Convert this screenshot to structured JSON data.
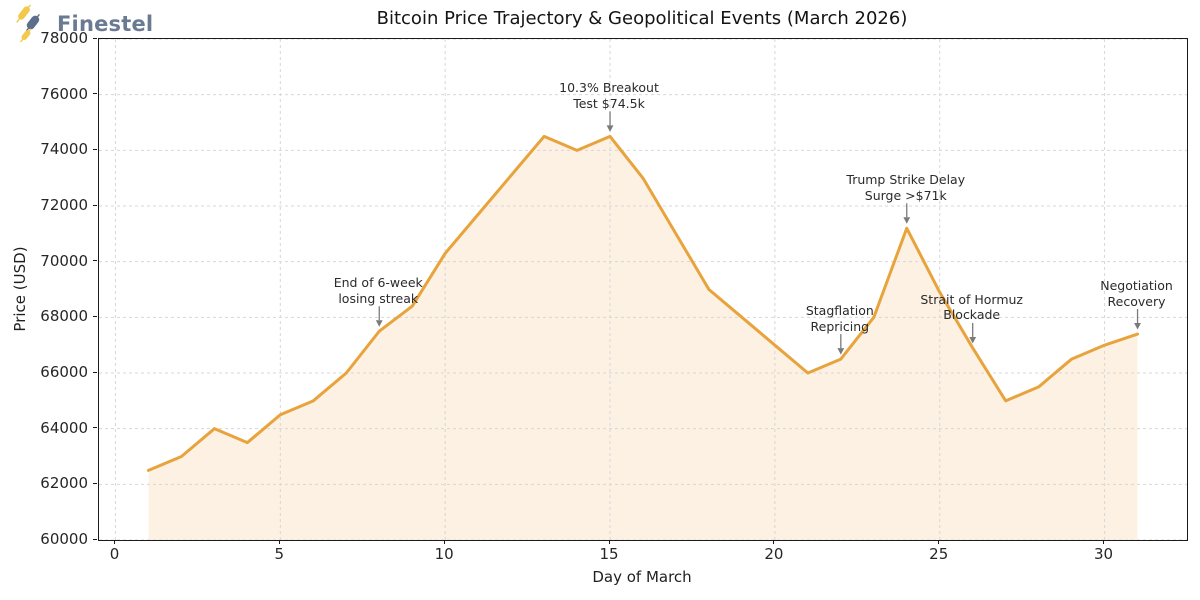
{
  "logo": {
    "text": "Finestel",
    "colors": {
      "yellow": "#F2C94C",
      "slate": "#5B6E8C"
    }
  },
  "title": "Bitcoin Price Trajectory & Geopolitical Events (March 2026)",
  "axes": {
    "xlabel": "Day of March",
    "ylabel": "Price (USD)",
    "x_ticks": [
      0,
      5,
      10,
      15,
      20,
      25,
      30
    ],
    "y_ticks": [
      60000,
      62000,
      64000,
      66000,
      68000,
      70000,
      72000,
      74000,
      76000,
      78000
    ],
    "xlim": [
      -0.5,
      32.5
    ],
    "ylim": [
      60000,
      78000
    ],
    "grid": true
  },
  "colors": {
    "grid": "#d7d7d7",
    "spine": "#1b1b1b",
    "arrow": "#7a7a7a",
    "tick_text": "#262626"
  },
  "chart_data": {
    "type": "line",
    "title": "Bitcoin Price Trajectory & Geopolitical Events (March 2026)",
    "xlabel": "Day of March",
    "ylabel": "Price (USD)",
    "line_color": "#E8A33C",
    "fill_color": "#E8A33C26",
    "x": [
      1,
      2,
      3,
      4,
      5,
      6,
      7,
      8,
      9,
      10,
      11,
      12,
      13,
      14,
      15,
      16,
      17,
      18,
      19,
      20,
      21,
      22,
      23,
      24,
      25,
      26,
      27,
      28,
      29,
      30,
      31
    ],
    "values": [
      62500,
      63000,
      64000,
      63500,
      64500,
      65000,
      66000,
      67500,
      68400,
      70300,
      71700,
      73100,
      74500,
      74000,
      74500,
      73000,
      71000,
      69000,
      68000,
      67000,
      66000,
      66500,
      68000,
      71200,
      68900,
      66900,
      65000,
      65500,
      66500,
      67000,
      67400
    ],
    "annotations": [
      {
        "lines": [
          "End of 6-week",
          "losing streak"
        ],
        "day": 8,
        "price": 67500
      },
      {
        "lines": [
          "10.3% Breakout",
          "Test $74.5k"
        ],
        "day": 15,
        "price": 74500
      },
      {
        "lines": [
          "Trump Strike Delay",
          "Surge >$71k"
        ],
        "day": 24,
        "price": 71200
      },
      {
        "lines": [
          "Stagflation",
          "Repricing"
        ],
        "day": 22,
        "price": 66500
      },
      {
        "lines": [
          "Strait of Hormuz",
          "Blockade"
        ],
        "day": 26,
        "price": 66900
      },
      {
        "lines": [
          "Negotiation",
          "Recovery"
        ],
        "day": 31,
        "price": 67400
      }
    ]
  }
}
